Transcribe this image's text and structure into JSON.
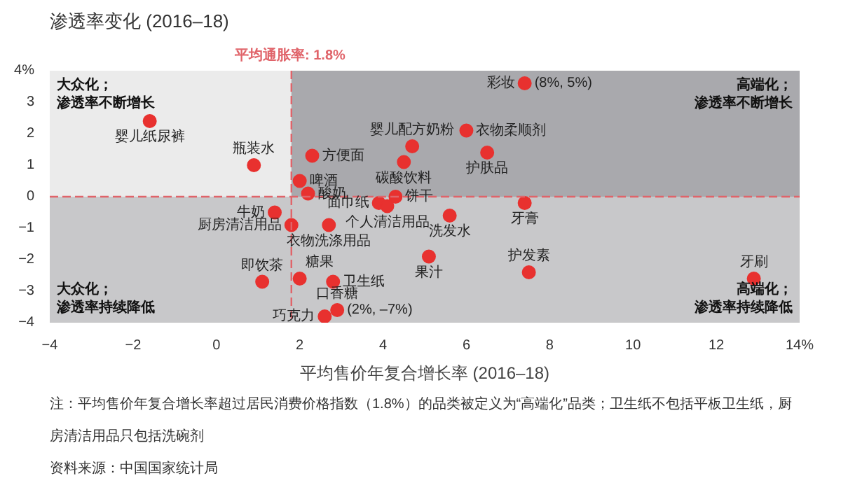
{
  "chart_data": {
    "type": "scatter",
    "ylabel": "渗透率变化 (2016–18)",
    "xlabel": "平均售价年复合增长率 (2016–18)",
    "xlim": [
      -4,
      14
    ],
    "ylim": [
      -4,
      4
    ],
    "xticks": [
      -4,
      -2,
      0,
      2,
      4,
      6,
      8,
      10,
      12,
      {
        "value": 14,
        "label": "14%"
      }
    ],
    "yticks": [
      -4,
      -3,
      -2,
      -1,
      0,
      1,
      2,
      3,
      {
        "value": 4,
        "label": "4%"
      }
    ],
    "grid": false,
    "marker": "circle",
    "series": [
      {
        "name": "婴儿纸尿裤",
        "color": "#e8312f",
        "x": [
          -1.6
        ],
        "values": [
          2.4
        ]
      },
      {
        "name": "瓶装水",
        "color": "#e8312f",
        "x": [
          0.9
        ],
        "values": [
          1.0
        ]
      },
      {
        "name": "方便面",
        "color": "#e8312f",
        "x": [
          2.3
        ],
        "values": [
          1.3
        ]
      },
      {
        "name": "婴儿配方奶粉",
        "color": "#e8312f",
        "x": [
          4.7
        ],
        "values": [
          1.6
        ]
      },
      {
        "name": "衣物柔顺剂",
        "color": "#e8312f",
        "x": [
          6.0
        ],
        "values": [
          2.1
        ]
      },
      {
        "name": "碳酸饮料",
        "color": "#e8312f",
        "x": [
          4.5
        ],
        "values": [
          1.1
        ]
      },
      {
        "name": "护肤品",
        "color": "#e8312f",
        "x": [
          6.5
        ],
        "values": [
          1.4
        ]
      },
      {
        "name": "彩妆",
        "color": "#e8312f",
        "x": [
          7.4
        ],
        "values": [
          3.6
        ]
      },
      {
        "name": "啤酒",
        "color": "#e8312f",
        "x": [
          2.0
        ],
        "values": [
          0.5
        ]
      },
      {
        "name": "酸奶",
        "color": "#e8312f",
        "x": [
          2.2
        ],
        "values": [
          0.1
        ]
      },
      {
        "name": "饼干",
        "color": "#e8312f",
        "x": [
          4.3
        ],
        "values": [
          0.0
        ]
      },
      {
        "name": "面巾纸",
        "color": "#e8312f",
        "x": [
          3.9
        ],
        "values": [
          -0.2
        ]
      },
      {
        "name": "个人清洁用品",
        "color": "#e8312f",
        "x": [
          4.1
        ],
        "values": [
          -0.3
        ]
      },
      {
        "name": "牛奶",
        "color": "#e8312f",
        "x": [
          1.4
        ],
        "values": [
          -0.5
        ]
      },
      {
        "name": "厨房清洁用品",
        "color": "#e8312f",
        "x": [
          1.8
        ],
        "values": [
          -0.9
        ]
      },
      {
        "name": "衣物洗涤用品",
        "color": "#e8312f",
        "x": [
          2.7
        ],
        "values": [
          -0.9
        ]
      },
      {
        "name": "洗发水",
        "color": "#e8312f",
        "x": [
          5.6
        ],
        "values": [
          -0.6
        ]
      },
      {
        "name": "牙膏",
        "color": "#e8312f",
        "x": [
          7.4
        ],
        "values": [
          -0.2
        ]
      },
      {
        "name": "果汁",
        "color": "#e8312f",
        "x": [
          5.1
        ],
        "values": [
          -1.9
        ]
      },
      {
        "name": "护发素",
        "color": "#e8312f",
        "x": [
          7.5
        ],
        "values": [
          -2.4
        ]
      },
      {
        "name": "牙刷",
        "color": "#e8312f",
        "x": [
          12.9
        ],
        "values": [
          -2.6
        ]
      },
      {
        "name": "即饮茶",
        "color": "#e8312f",
        "x": [
          1.1
        ],
        "values": [
          -2.7
        ]
      },
      {
        "name": "糖果",
        "color": "#e8312f",
        "x": [
          2.0
        ],
        "values": [
          -2.6
        ]
      },
      {
        "name": "卫生纸",
        "color": "#e8312f",
        "x": [
          2.8
        ],
        "values": [
          -2.7
        ]
      },
      {
        "name": "巧克力",
        "color": "#e8312f",
        "x": [
          2.6
        ],
        "values": [
          -3.8
        ]
      },
      {
        "name": "口香糖",
        "color": "#e8312f",
        "x": [
          2.9
        ],
        "values": [
          -3.6
        ]
      }
    ],
    "ref_lines": [
      {
        "axis": "x",
        "value": 1.8,
        "label": "平均通胀率: 1.8%",
        "color": "#e0646a",
        "line_style": "dashed"
      },
      {
        "axis": "y",
        "value": 0,
        "label": null,
        "color": "#e0646a",
        "line_style": "dashed"
      }
    ],
    "bands": [
      {
        "axis": "x",
        "from": 1.8,
        "to": 14,
        "label": null,
        "color": "#a9a9ad"
      },
      {
        "axis": "y",
        "from": -4,
        "to": 0,
        "label": null,
        "color": "#c8c8ca"
      }
    ],
    "annotations": [
      "大众化；",
      "渗透率不断增长",
      "高端化；",
      "渗透率不断增长",
      "大众化；",
      "渗透率持续降低",
      "高端化；",
      "渗透率持续降低",
      {
        "text": "(8%, 5%)",
        "x": 7.4,
        "y": 3.6
      },
      {
        "text": "(2%, –7%)",
        "x": 2.9,
        "y": -3.6
      },
      "注：平均售价年复合增长率超过居民消费价格指数（1.8%）的品类被定义为“高端化”品类；卫生纸不包括平板卫生纸，厨房清洁用品只包括洗碗剂",
      "资料来源：中国国家统计局"
    ]
  }
}
